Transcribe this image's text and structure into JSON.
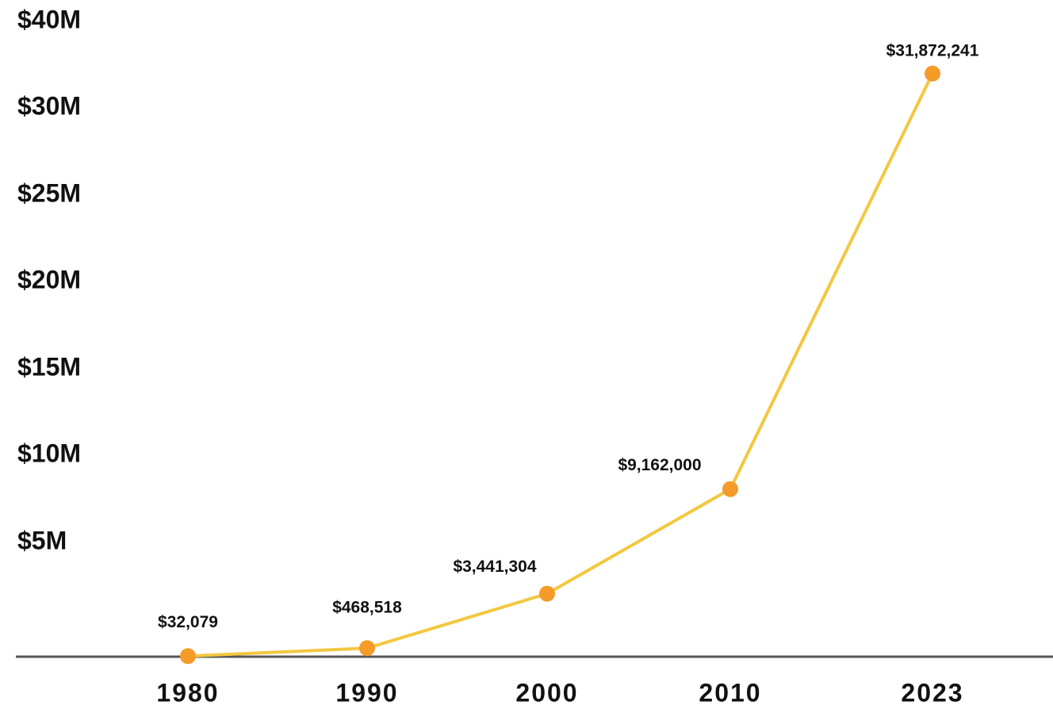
{
  "chart_data": {
    "type": "line",
    "title": "",
    "xlabel": "",
    "ylabel": "",
    "categories": [
      "1980",
      "1990",
      "2000",
      "2010",
      "2023"
    ],
    "series": [
      {
        "values": [
          32079,
          468518,
          3441304,
          9162000,
          31872241
        ],
        "labels": [
          "$32,079",
          "$468,518",
          "$3,441,304",
          "$9,162,000",
          "$31,872,241"
        ]
      }
    ],
    "y_ticks": [
      {
        "value": 5000000,
        "label": "$5M"
      },
      {
        "value": 10000000,
        "label": "$10M"
      },
      {
        "value": 15000000,
        "label": "$15M"
      },
      {
        "value": 20000000,
        "label": "$20M"
      },
      {
        "value": 25000000,
        "label": "$25M"
      },
      {
        "value": 30000000,
        "label": "$30M"
      },
      {
        "value": 40000000,
        "label": "$40M"
      }
    ],
    "ylim": [
      0,
      40000000
    ],
    "grid": false,
    "legend": "none",
    "colors": {
      "line": "#F2C840",
      "marker": "#F49B2A",
      "baseline": "#555555",
      "text": "#111111"
    }
  }
}
